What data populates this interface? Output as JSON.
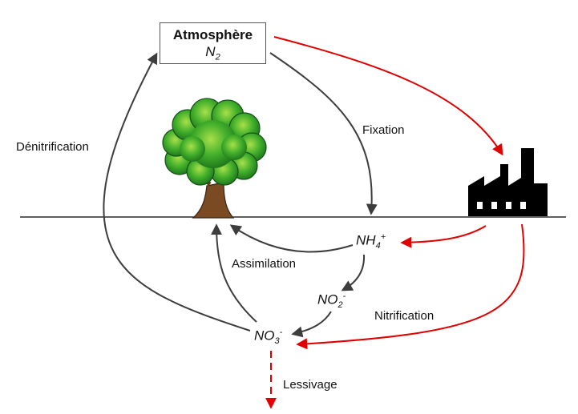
{
  "atmosphere": {
    "title": "Atmosphère",
    "formula": "N",
    "formula_sub": "2"
  },
  "labels": {
    "denitrification": "Dénitrification",
    "fixation": "Fixation",
    "assimilation": "Assimilation",
    "nitrification": "Nitrification",
    "lessivage": "Lessivage"
  },
  "chem": {
    "nh4": {
      "base": "NH",
      "sub": "4",
      "sup": "+"
    },
    "no2": {
      "base": "NO",
      "sub": "2",
      "sup": "-"
    },
    "no3": {
      "base": "NO",
      "sub": "3",
      "sup": "-"
    }
  },
  "colors": {
    "natural_arrow": "#3d3d3d",
    "human_arrow": "#e00000",
    "ground": "#000000",
    "tree_foliage": "#3cae2a",
    "tree_trunk": "#7a4a23",
    "factory": "#000000"
  }
}
